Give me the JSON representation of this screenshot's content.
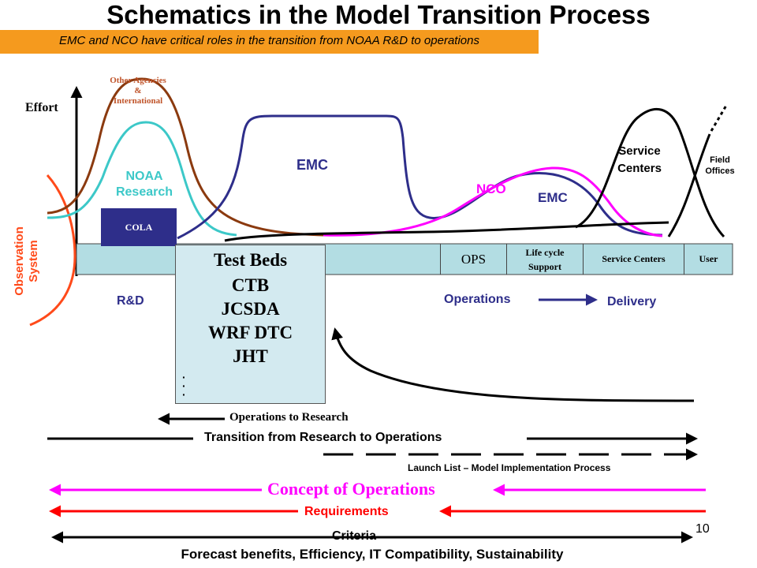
{
  "title": "Schematics in the Model Transition Process",
  "subtitle": "EMC and NCO have critical roles in the transition from NOAA R&D to operations",
  "axis": {
    "y_label": "Effort"
  },
  "curve_labels": {
    "other_agencies": [
      "Other Agencies",
      "&",
      "International"
    ],
    "noaa_research": [
      "NOAA",
      "Research"
    ],
    "emc_top": "EMC",
    "nco": "NCO",
    "emc_right": "EMC",
    "service_centers": [
      "Service",
      "Centers"
    ],
    "field_offices": [
      "Field",
      "Offices"
    ],
    "observation_system": [
      "Observation",
      "System"
    ]
  },
  "cola": "COLA",
  "bar": {
    "ops": "OPS",
    "life_cycle": [
      "Life cycle",
      "Support"
    ],
    "service_centers": "Service Centers",
    "user": "User"
  },
  "test_beds": [
    "Test Beds",
    "CTB",
    "JCSDA",
    "WRF DTC",
    "JHT"
  ],
  "phases": {
    "rd": "R&D",
    "operations": "Operations",
    "delivery": "Delivery"
  },
  "arrows": {
    "ops_to_research": "Operations to Research",
    "r2o": "Transition from Research to Operations",
    "launch_list": "Launch List – Model Implementation Process",
    "conops": "Concept of Operations",
    "requirements": "Requirements",
    "criteria": "Criteria",
    "forecast": "Forecast benefits, Efficiency, IT Compatibility, Sustainability"
  },
  "page_number": "10",
  "colors": {
    "orange": "#f59a1e",
    "brown": "#8b3a0f",
    "teal": "#3cc8c8",
    "navy": "#2e2e8a",
    "magenta": "#ff00ff",
    "red": "#ff0000",
    "obs_orange": "#ff4a1a",
    "bar": "#b3dde3",
    "box": "#d3eaf0"
  }
}
